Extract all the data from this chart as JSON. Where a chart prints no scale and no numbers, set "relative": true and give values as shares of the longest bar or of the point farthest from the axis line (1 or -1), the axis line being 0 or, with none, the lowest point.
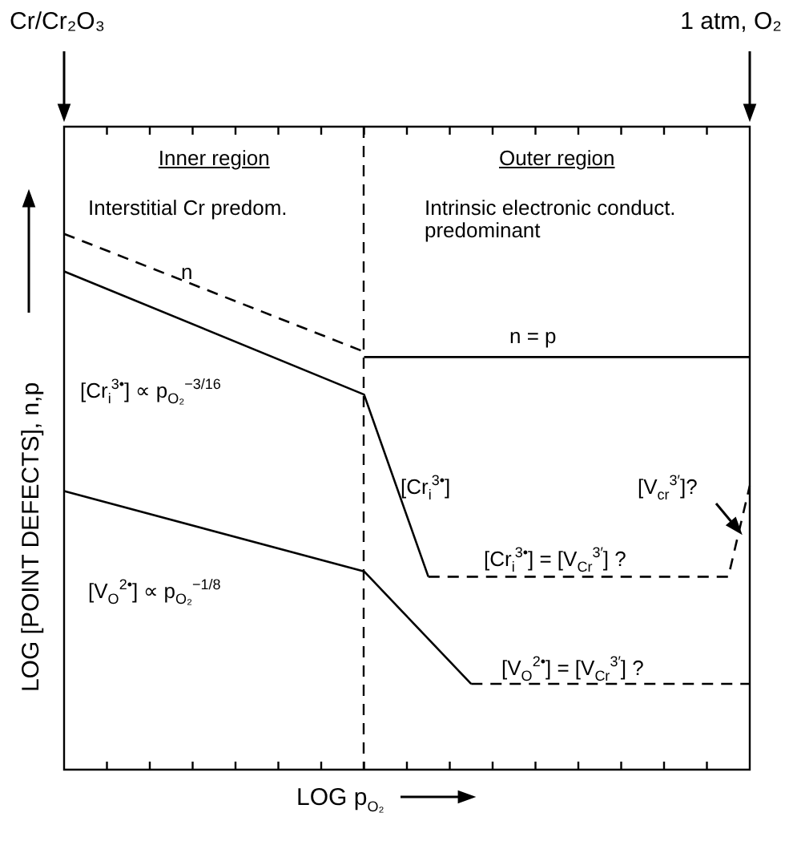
{
  "chart_data": {
    "type": "line",
    "relative": true,
    "xlabel": "LOG p$_{O₂}$",
    "ylabel": "LOG [POINT DEFECTS], n,p",
    "categories": [
      null,
      null,
      null,
      null,
      null,
      null,
      null,
      null,
      null,
      null,
      null,
      null,
      null,
      null,
      null,
      null,
      null,
      null,
      null,
      null,
      null,
      null,
      null,
      null,
      null,
      null,
      null,
      null,
      null,
      null,
      null,
      null,
      null
    ],
    "legend": false,
    "marker": "none",
    "series": [
      {
        "color": "#000000",
        "line_style": "dashed",
        "values": [
          1,
          null,
          null,
          null,
          null,
          null,
          null,
          null,
          null,
          null,
          null,
          null,
          null,
          null,
          0.78,
          null,
          null,
          null,
          null,
          null,
          null,
          null,
          null,
          null,
          null,
          null,
          null,
          null,
          null,
          null,
          null,
          null,
          null
        ]
      },
      {
        "color": "#000000",
        "line_style": "solid",
        "values": [
          null,
          null,
          null,
          null,
          null,
          null,
          null,
          null,
          null,
          null,
          null,
          null,
          null,
          null,
          0.77,
          null,
          null,
          null,
          null,
          null,
          null,
          null,
          null,
          null,
          null,
          null,
          null,
          null,
          null,
          null,
          null,
          null,
          0.77
        ]
      },
      {
        "color": "#000000",
        "line_style": "solid",
        "values": [
          0.93,
          null,
          null,
          null,
          null,
          null,
          null,
          null,
          null,
          null,
          null,
          null,
          null,
          null,
          0.7,
          null,
          null,
          0.36,
          null,
          null,
          null,
          null,
          null,
          null,
          null,
          null,
          null,
          null,
          null,
          null,
          null,
          null,
          null
        ]
      },
      {
        "color": "#000000",
        "line_style": "dashed",
        "values": [
          null,
          null,
          null,
          null,
          null,
          null,
          null,
          null,
          null,
          null,
          null,
          null,
          null,
          null,
          null,
          null,
          null,
          0.36,
          null,
          null,
          null,
          null,
          null,
          null,
          null,
          null,
          null,
          null,
          null,
          null,
          null,
          0.36,
          0.53
        ]
      },
      {
        "color": "#000000",
        "line_style": "solid",
        "values": [
          0.52,
          null,
          null,
          null,
          null,
          null,
          null,
          null,
          null,
          null,
          null,
          null,
          null,
          null,
          0.37,
          null,
          null,
          null,
          null,
          0.16,
          null,
          null,
          null,
          null,
          null,
          null,
          null,
          null,
          null,
          null,
          null,
          null,
          null
        ]
      },
      {
        "color": "#000000",
        "line_style": "dashed",
        "values": [
          null,
          null,
          null,
          null,
          null,
          null,
          null,
          null,
          null,
          null,
          null,
          null,
          null,
          null,
          null,
          null,
          null,
          null,
          null,
          0.16,
          null,
          null,
          null,
          null,
          null,
          null,
          null,
          null,
          null,
          null,
          null,
          null,
          0.16
        ]
      }
    ],
    "annotations": [
      "Cr/Cr₂O₃",
      "1 atm, O₂",
      "Inner region",
      "Outer region",
      "Interstitial Cr predom.",
      "Intrinsic electronic conduct. predominant",
      "n",
      "n = p",
      "[Cr$_{i}$$^{3•}$] ∝ p$_{O₂}$$^{−3/16}$",
      "[V$_{O}$$^{2•}$] ∝ p$_{O₂}$$^{−1/8}$",
      "[Cr$_{i}$$^{3•}$]",
      "[Cr$_{i}$$^{3•}$] = [V$_{Cr}$$^{3′}$] ?",
      "[V$_{O}$$^{2•}$] = [V$_{Cr}$$^{3′}$] ?",
      "[V$_{cr}$$^{3′}$]?"
    ]
  }
}
